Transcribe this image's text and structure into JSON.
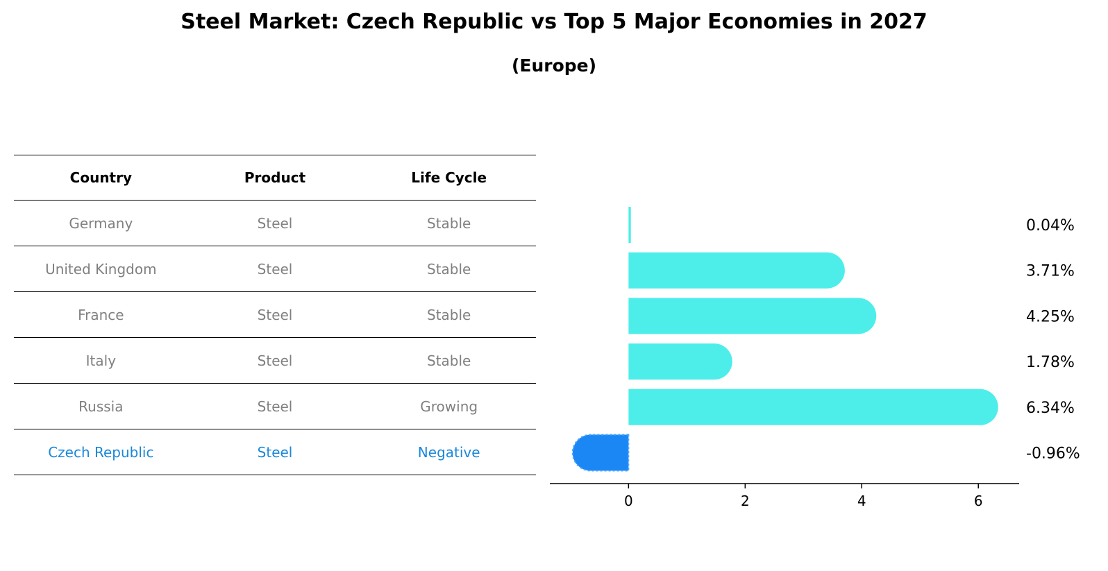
{
  "title": "Steel Market: Czech Republic vs Top 5 Major Economies in 2027",
  "subtitle": "(Europe)",
  "colors": {
    "positive_bar": "#4deeea",
    "negative_bar": "#1a87f5",
    "highlight_text": "#1a87d9",
    "row_text": "#808080"
  },
  "table": {
    "headers": [
      "Country",
      "Product",
      "Life Cycle"
    ],
    "rows": [
      {
        "country": "Germany",
        "product": "Steel",
        "life_cycle": "Stable"
      },
      {
        "country": "United Kingdom",
        "product": "Steel",
        "life_cycle": "Stable"
      },
      {
        "country": "France",
        "product": "Steel",
        "life_cycle": "Stable"
      },
      {
        "country": "Italy",
        "product": "Steel",
        "life_cycle": "Stable"
      },
      {
        "country": "Russia",
        "product": "Steel",
        "life_cycle": "Growing"
      },
      {
        "country": "Czech Republic",
        "product": "Steel",
        "life_cycle": "Negative",
        "highlight": true
      }
    ]
  },
  "chart_data": {
    "type": "bar",
    "orientation": "horizontal",
    "categories": [
      "Germany",
      "United Kingdom",
      "France",
      "Italy",
      "Russia",
      "Czech Republic"
    ],
    "values": [
      0.04,
      3.71,
      4.25,
      1.78,
      6.34,
      -0.96
    ],
    "value_labels": [
      "0.04%",
      "3.71%",
      "4.25%",
      "1.78%",
      "6.34%",
      "-0.96%"
    ],
    "xlim": [
      -1.35,
      6.7
    ],
    "xticks": [
      0,
      2,
      4,
      6
    ],
    "grid": false,
    "legend": "none"
  }
}
